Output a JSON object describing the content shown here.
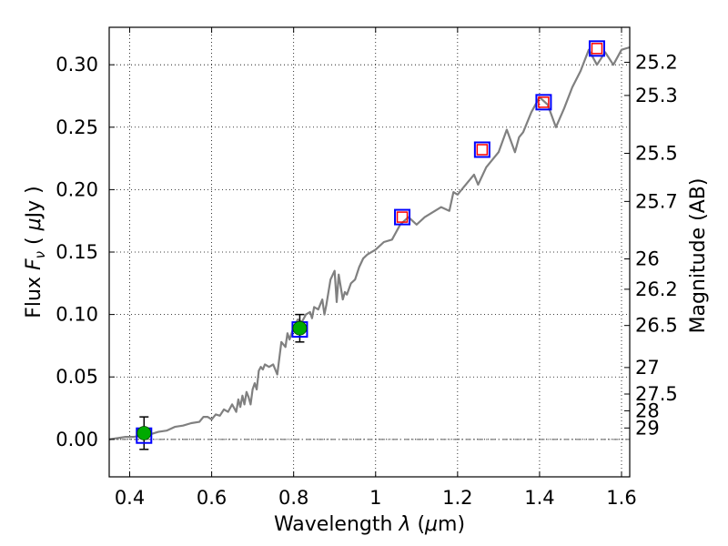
{
  "chart_data": {
    "type": "scatter",
    "title": "",
    "xlabel": "Wavelength  λ (μm)",
    "ylabel": "Flux  F_ν  ( μJy )",
    "ylabel_parts": {
      "pre": "Flux  ",
      "sym": "F",
      "sub": "ν",
      "mid": "  ( ",
      "mu": "μ",
      "post": "Jy )"
    },
    "xlabel_parts": {
      "pre": "Wavelength  ",
      "sym": "λ",
      "mid": " (",
      "mu": "μ",
      "post": "m)"
    },
    "y2label": "Magnitude (AB)",
    "xlim": [
      0.35,
      1.62
    ],
    "ylim": [
      -0.03,
      0.33
    ],
    "grid": true,
    "x_ticks": [
      {
        "v": 0.4,
        "label": "0.4"
      },
      {
        "v": 0.6,
        "label": "0.6"
      },
      {
        "v": 0.8,
        "label": "0.8"
      },
      {
        "v": 1.0,
        "label": "1"
      },
      {
        "v": 1.2,
        "label": "1.2"
      },
      {
        "v": 1.4,
        "label": "1.4"
      },
      {
        "v": 1.6,
        "label": "1.6"
      }
    ],
    "y_ticks": [
      {
        "v": 0.0,
        "label": "0.00"
      },
      {
        "v": 0.05,
        "label": "0.05"
      },
      {
        "v": 0.1,
        "label": "0.10"
      },
      {
        "v": 0.15,
        "label": "0.15"
      },
      {
        "v": 0.2,
        "label": "0.20"
      },
      {
        "v": 0.25,
        "label": "0.25"
      },
      {
        "v": 0.3,
        "label": "0.30"
      }
    ],
    "y2_ticks": [
      {
        "mag": 25.2,
        "label": "25.2"
      },
      {
        "mag": 25.3,
        "label": "25.3"
      },
      {
        "mag": 25.5,
        "label": "25.5"
      },
      {
        "mag": 25.7,
        "label": "25.7"
      },
      {
        "mag": 26,
        "label": "26"
      },
      {
        "mag": 26.2,
        "label": "26.2"
      },
      {
        "mag": 26.5,
        "label": "26.5"
      },
      {
        "mag": 27,
        "label": "27"
      },
      {
        "mag": 27.5,
        "label": "27.5"
      },
      {
        "mag": 28,
        "label": "28"
      },
      {
        "mag": 29,
        "label": "29"
      }
    ],
    "series": [
      {
        "kind": "line",
        "color": "#808080",
        "x": [
          0.35,
          0.37,
          0.39,
          0.41,
          0.43,
          0.45,
          0.47,
          0.49,
          0.51,
          0.53,
          0.55,
          0.57,
          0.58,
          0.59,
          0.6,
          0.61,
          0.62,
          0.63,
          0.64,
          0.65,
          0.66,
          0.665,
          0.67,
          0.675,
          0.68,
          0.685,
          0.69,
          0.695,
          0.7,
          0.705,
          0.71,
          0.715,
          0.72,
          0.725,
          0.73,
          0.74,
          0.75,
          0.76,
          0.77,
          0.78,
          0.785,
          0.79,
          0.8,
          0.81,
          0.82,
          0.83,
          0.84,
          0.845,
          0.85,
          0.86,
          0.87,
          0.875,
          0.88,
          0.89,
          0.9,
          0.905,
          0.91,
          0.92,
          0.925,
          0.93,
          0.94,
          0.95,
          0.96,
          0.97,
          0.98,
          1.0,
          1.02,
          1.04,
          1.06,
          1.08,
          1.1,
          1.12,
          1.14,
          1.16,
          1.18,
          1.19,
          1.2,
          1.22,
          1.24,
          1.25,
          1.27,
          1.28,
          1.3,
          1.32,
          1.34,
          1.35,
          1.36,
          1.38,
          1.4,
          1.42,
          1.44,
          1.46,
          1.48,
          1.5,
          1.52,
          1.54,
          1.56,
          1.58,
          1.6,
          1.62
        ],
        "y": [
          0.0,
          0.001,
          0.002,
          0.002,
          0.003,
          0.004,
          0.006,
          0.007,
          0.01,
          0.011,
          0.013,
          0.014,
          0.018,
          0.018,
          0.016,
          0.02,
          0.019,
          0.024,
          0.022,
          0.028,
          0.022,
          0.032,
          0.026,
          0.035,
          0.028,
          0.038,
          0.034,
          0.028,
          0.04,
          0.045,
          0.04,
          0.055,
          0.058,
          0.056,
          0.06,
          0.058,
          0.06,
          0.052,
          0.078,
          0.074,
          0.085,
          0.08,
          0.09,
          0.096,
          0.094,
          0.1,
          0.102,
          0.097,
          0.106,
          0.104,
          0.112,
          0.1,
          0.108,
          0.128,
          0.135,
          0.11,
          0.132,
          0.112,
          0.118,
          0.116,
          0.125,
          0.128,
          0.138,
          0.145,
          0.148,
          0.152,
          0.158,
          0.16,
          0.172,
          0.178,
          0.172,
          0.178,
          0.182,
          0.186,
          0.183,
          0.198,
          0.196,
          0.204,
          0.212,
          0.204,
          0.218,
          0.222,
          0.23,
          0.248,
          0.23,
          0.242,
          0.246,
          0.262,
          0.274,
          0.268,
          0.25,
          0.265,
          0.282,
          0.295,
          0.312,
          0.3,
          0.31,
          0.3,
          0.312,
          0.314
        ]
      },
      {
        "kind": "square_markers",
        "color": "#0000ff",
        "x": [
          0.435,
          0.815,
          1.065,
          1.26,
          1.41,
          1.54
        ],
        "y": [
          0.003,
          0.088,
          0.178,
          0.232,
          0.27,
          0.313
        ]
      },
      {
        "kind": "square_markers_inner",
        "color": "#ff0000",
        "x": [
          1.065,
          1.26,
          1.41,
          1.54
        ],
        "y": [
          0.178,
          0.232,
          0.27,
          0.313
        ]
      },
      {
        "kind": "points_with_errorbars",
        "color": "#00aa00",
        "x": [
          0.435,
          0.815
        ],
        "y": [
          0.005,
          0.089
        ],
        "yerr": [
          0.013,
          0.011
        ]
      }
    ]
  }
}
